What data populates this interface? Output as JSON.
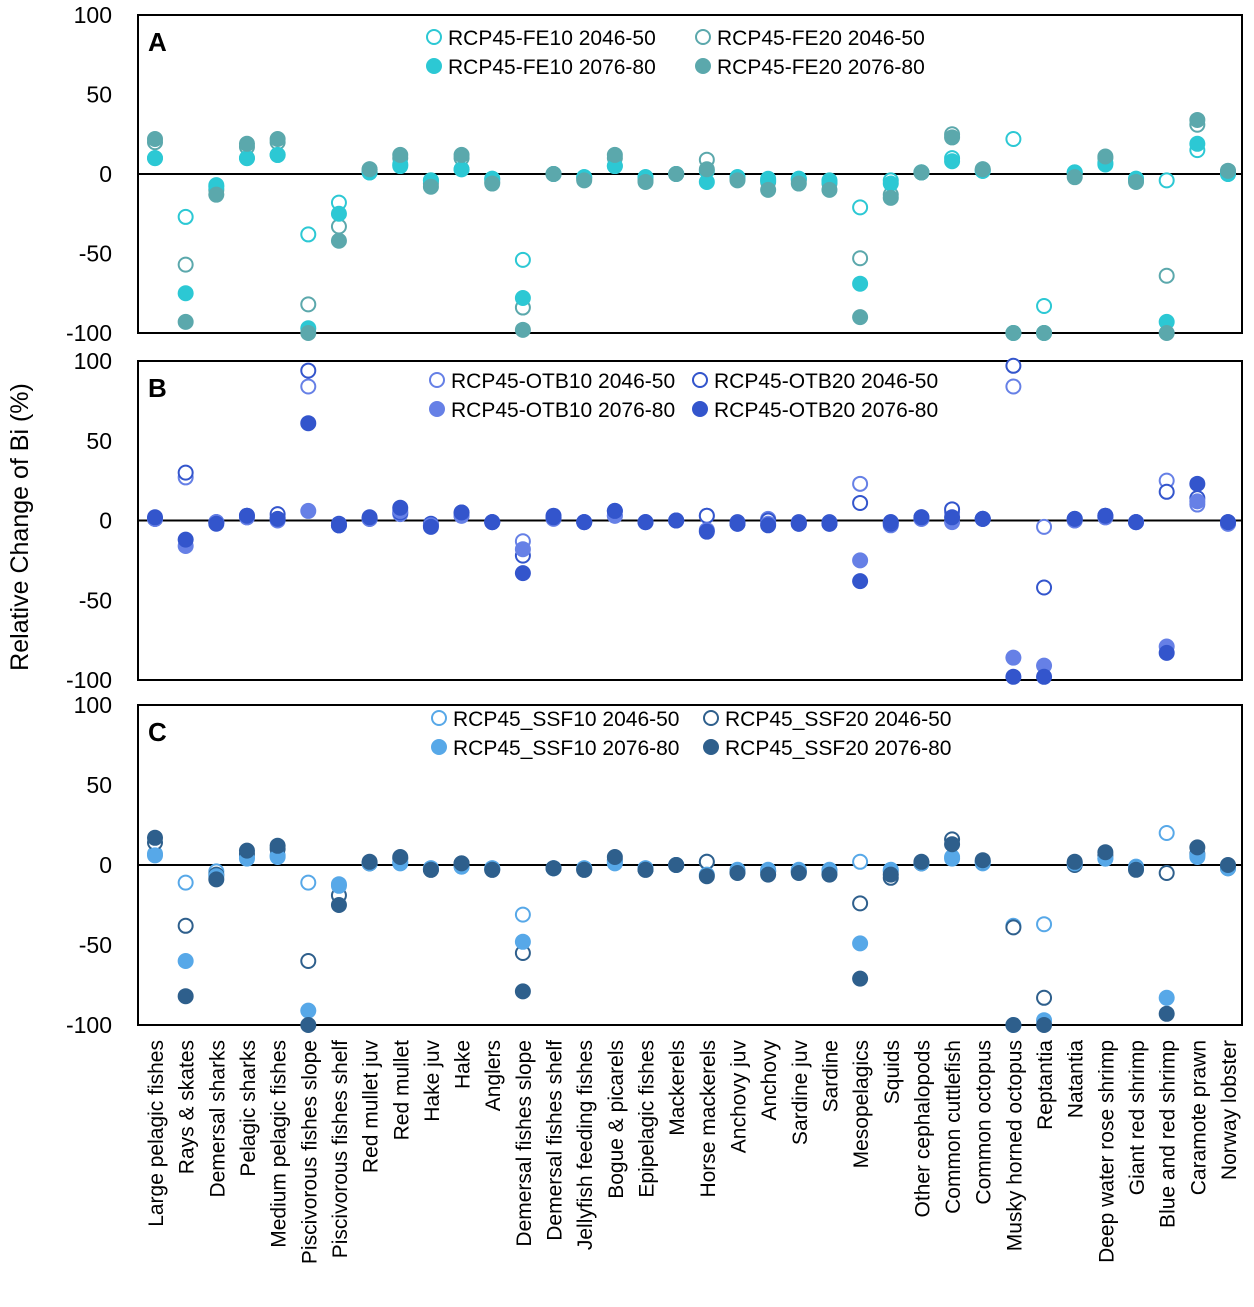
{
  "chart_data": {
    "type": "scatter",
    "ylabel": "Relative Change of Bi (%)",
    "ylim": [
      -100,
      100
    ],
    "yticks": [
      100,
      50,
      0,
      -50,
      -100
    ],
    "categories": [
      "Large pelagic fishes",
      "Rays & skates",
      "Demersal sharks",
      "Pelagic sharks",
      "Medium pelagic fishes",
      "Piscivorous fishes slope",
      "Piscivorous fishes shelf",
      "Red mullet juv",
      "Red mullet",
      "Hake juv",
      "Hake",
      "Anglers",
      "Demersal fishes slope",
      "Demersal fishes shelf",
      "Jellyfish feeding fishes",
      "Bogue & picarels",
      "Epipelagic fishes",
      "Mackerels",
      "Horse mackerels",
      "Anchovy juv",
      "Anchovy",
      "Sardine juv",
      "Sardine",
      "Mesopelagics",
      "Squids",
      "Other cephalopods",
      "Common cuttlefish",
      "Common octopus",
      "Musky horned octopus",
      "Reptantia",
      "Natantia",
      "Deep water rose shrimp",
      "Giant red shrimp",
      "Blue and red shrimp",
      "Caramote prawn",
      "Norway lobster"
    ],
    "panels": [
      {
        "label": "A",
        "series": [
          {
            "name": "RCP45-FE10 2046-50",
            "color": "#2CC8D4",
            "marker": "open",
            "values": [
              10,
              -27,
              -7,
              10,
              12,
              -38,
              -18,
              1,
              5,
              -4,
              3,
              -3,
              -54,
              0,
              -2,
              5,
              -2,
              0,
              2,
              -2,
              -3,
              -3,
              -4,
              -21,
              -4,
              1,
              10,
              2,
              22,
              -83,
              1,
              6,
              -3,
              -4,
              15,
              0
            ]
          },
          {
            "name": "RCP45-FE20 2046-50",
            "color": "#5BA8AC",
            "marker": "open",
            "values": [
              20,
              -57,
              -10,
              17,
              20,
              -82,
              -33,
              3,
              10,
              -6,
              10,
              -5,
              -84,
              0,
              -3,
              10,
              -4,
              0,
              9,
              -3,
              -5,
              -4,
              -6,
              -53,
              -13,
              1,
              25,
              3,
              -100,
              -100,
              0,
              10,
              -4,
              -64,
              31,
              2
            ]
          },
          {
            "name": "RCP45-FE10 2076-80",
            "color": "#2CC8D4",
            "marker": "filled",
            "values": [
              10,
              -75,
              -8,
              10,
              12,
              -97,
              -25,
              1,
              6,
              -4,
              3,
              -3,
              -78,
              0,
              -2,
              5,
              -2,
              0,
              -5,
              -2,
              -4,
              -3,
              -5,
              -69,
              -6,
              1,
              8,
              2,
              -100,
              -100,
              1,
              7,
              -3,
              -93,
              19,
              0
            ]
          },
          {
            "name": "RCP45-FE20 2076-80",
            "color": "#5BA8AC",
            "marker": "filled",
            "values": [
              22,
              -93,
              -13,
              19,
              22,
              -100,
              -42,
              3,
              12,
              -8,
              12,
              -6,
              -98,
              0,
              -4,
              12,
              -5,
              0,
              3,
              -4,
              -10,
              -6,
              -10,
              -90,
              -15,
              1,
              23,
              3,
              -100,
              -100,
              -2,
              11,
              -5,
              -100,
              34,
              2
            ]
          }
        ]
      },
      {
        "label": "B",
        "series": [
          {
            "name": "RCP45-OTB10 2046-50",
            "color": "#6680E6",
            "marker": "open",
            "values": [
              1,
              27,
              -1,
              2,
              2,
              84,
              -3,
              1,
              4,
              -3,
              3,
              -1,
              -13,
              2,
              -1,
              3,
              -1,
              0,
              3,
              -2,
              1,
              -2,
              -2,
              23,
              -3,
              1,
              5,
              1,
              84,
              -4,
              0,
              2,
              -1,
              25,
              10,
              -2
            ]
          },
          {
            "name": "RCP45-OTB20 2046-50",
            "color": "#3355CC",
            "marker": "open",
            "values": [
              1,
              30,
              -1,
              3,
              4,
              94,
              -2,
              1,
              5,
              -2,
              5,
              -1,
              -22,
              3,
              -1,
              6,
              -1,
              0,
              3,
              -1,
              0,
              -1,
              -1,
              11,
              -2,
              2,
              7,
              1,
              97,
              -42,
              1,
              3,
              -1,
              18,
              14,
              -1
            ]
          },
          {
            "name": "RCP45-OTB10 2076-80",
            "color": "#6680E6",
            "marker": "filled",
            "values": [
              1,
              -16,
              -1,
              2,
              0,
              6,
              -3,
              1,
              6,
              -3,
              3,
              -1,
              -18,
              1,
              -1,
              3,
              -1,
              0,
              -6,
              -2,
              -2,
              -2,
              -2,
              -25,
              -1,
              1,
              -1,
              1,
              -86,
              -91,
              0,
              2,
              -1,
              -79,
              12,
              -2
            ]
          },
          {
            "name": "RCP45-OTB20 2076-80",
            "color": "#3355CC",
            "marker": "filled",
            "values": [
              2,
              -12,
              -2,
              3,
              1,
              61,
              -3,
              2,
              8,
              -4,
              5,
              -1,
              -33,
              2,
              -1,
              6,
              -1,
              0,
              -7,
              -2,
              -3,
              -2,
              -2,
              -38,
              -1,
              2,
              2,
              1,
              -98,
              -98,
              1,
              3,
              -1,
              -83,
              23,
              -1
            ]
          }
        ]
      },
      {
        "label": "C",
        "series": [
          {
            "name": "RCP45_SSF10 2046-50",
            "color": "#57A8E8",
            "marker": "open",
            "values": [
              7,
              -11,
              -4,
              5,
              6,
              -11,
              -12,
              1,
              1,
              -2,
              -1,
              -2,
              -31,
              -2,
              -2,
              1,
              -2,
              0,
              2,
              -3,
              -3,
              -3,
              -3,
              2,
              -3,
              1,
              5,
              1,
              -38,
              -37,
              1,
              4,
              -1,
              20,
              5,
              -1
            ]
          },
          {
            "name": "RCP45_SSF20 2046-50",
            "color": "#2E5F8C",
            "marker": "open",
            "values": [
              14,
              -38,
              -6,
              7,
              10,
              -60,
              -19,
              1,
              4,
              -3,
              1,
              -3,
              -55,
              -2,
              -3,
              3,
              -3,
              0,
              2,
              -4,
              -4,
              -4,
              -4,
              -24,
              -8,
              1,
              16,
              2,
              -39,
              -83,
              0,
              6,
              -2,
              -5,
              7,
              -2
            ]
          },
          {
            "name": "RCP45_SSF10 2076-80",
            "color": "#57A8E8",
            "marker": "filled",
            "values": [
              6,
              -60,
              -7,
              4,
              5,
              -91,
              -13,
              1,
              2,
              -2,
              -1,
              -2,
              -48,
              -2,
              -2,
              2,
              -2,
              0,
              -6,
              -4,
              -4,
              -4,
              -4,
              -49,
              -4,
              1,
              4,
              2,
              -100,
              -97,
              1,
              4,
              -2,
              -83,
              6,
              -2
            ]
          },
          {
            "name": "RCP45_SSF20 2076-80",
            "color": "#2E5F8C",
            "marker": "filled",
            "values": [
              17,
              -82,
              -9,
              9,
              12,
              -100,
              -25,
              2,
              5,
              -3,
              1,
              -3,
              -79,
              -2,
              -3,
              5,
              -3,
              0,
              -7,
              -5,
              -6,
              -5,
              -6,
              -71,
              -6,
              2,
              13,
              3,
              -100,
              -100,
              2,
              8,
              -3,
              -93,
              11,
              0
            ]
          }
        ]
      }
    ]
  }
}
